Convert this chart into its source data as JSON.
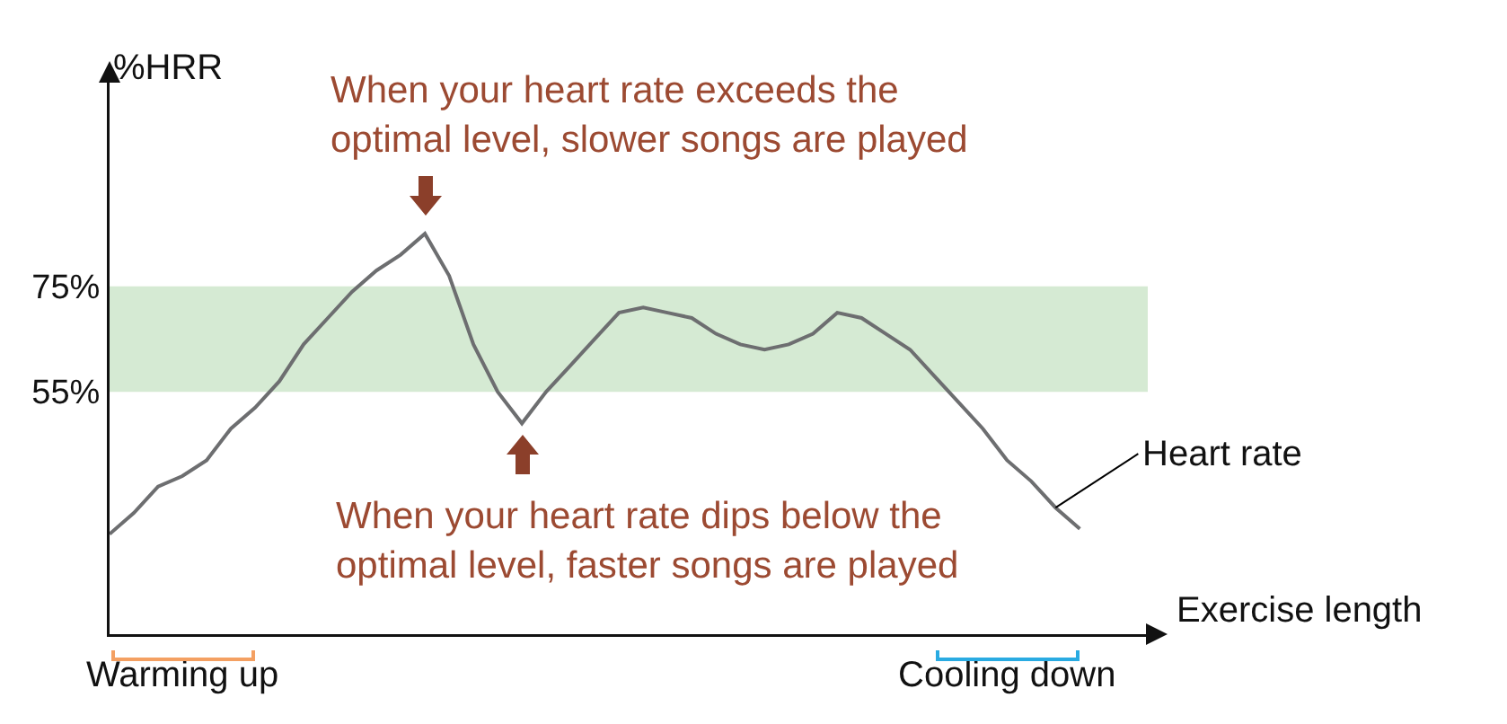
{
  "chart_data": {
    "type": "line",
    "ylabel": "%HRR",
    "xlabel": "Exercise length",
    "categories": [
      null,
      null,
      null,
      null,
      null,
      null,
      null,
      null,
      null,
      null,
      null,
      null,
      null,
      null,
      null,
      null,
      null,
      null,
      null,
      null,
      null,
      null,
      null,
      null,
      null,
      null,
      null,
      null,
      null,
      null,
      null,
      null,
      null,
      null,
      null,
      null,
      null,
      null,
      null,
      null,
      null
    ],
    "series": [
      {
        "name": "Heart rate",
        "color": "#6d6e70",
        "values": [
          28,
          32,
          37,
          39,
          42,
          48,
          52,
          57,
          64,
          69,
          74,
          78,
          81,
          85,
          77,
          64,
          55,
          49,
          55,
          60,
          65,
          70,
          71,
          70,
          69,
          66,
          64,
          63,
          64,
          66,
          70,
          69,
          66,
          63,
          58,
          53,
          48,
          42,
          38,
          33,
          29
        ]
      }
    ],
    "ylim": [
      9,
      114
    ],
    "yticks": [
      {
        "value": 55,
        "label": "55%"
      },
      {
        "value": 75,
        "label": "75%"
      }
    ],
    "bands": [
      {
        "axis": "y",
        "from": 55,
        "to": 75,
        "color": "#d5ead3"
      }
    ],
    "annotations": [
      "When your heart rate exceeds the\noptimal level, slower songs are played",
      "When your heart rate dips below the\noptimal level, faster songs are played",
      "Warming up",
      "Cooling down"
    ],
    "grid": false,
    "legend": false,
    "marker": "none",
    "line_style": "solid"
  }
}
